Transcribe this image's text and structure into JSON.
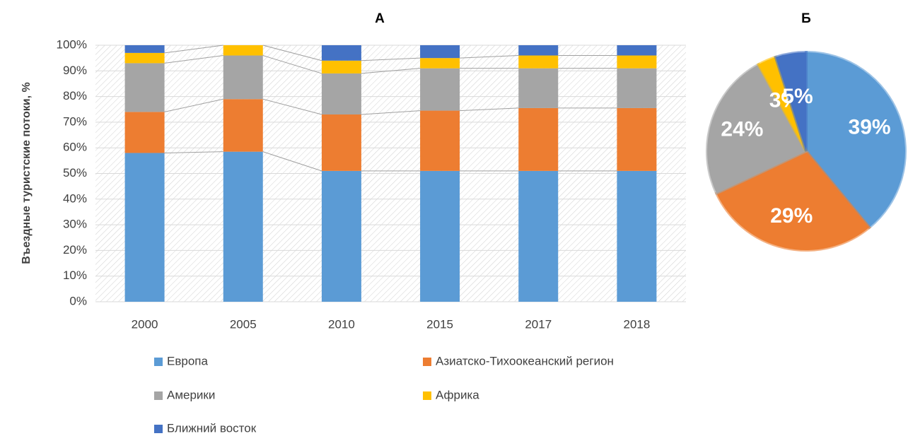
{
  "chart_data": [
    {
      "type": "bar",
      "stacked": true,
      "title": "А",
      "y_label": "Въездные туристские потоки, %",
      "categories": [
        "2000",
        "2005",
        "2010",
        "2015",
        "2017",
        "2018"
      ],
      "series": [
        {
          "name": "Европа",
          "color": "#5b9bd5",
          "values": [
            58,
            58.5,
            51,
            51,
            51,
            51
          ]
        },
        {
          "name": "Азиатско-Тихоокеанский регион",
          "color": "#ed7d31",
          "values": [
            16,
            20.5,
            22,
            23.5,
            24.5,
            24.5
          ]
        },
        {
          "name": "Америки",
          "color": "#a5a5a5",
          "values": [
            19,
            17,
            16,
            16.5,
            15.5,
            15.5
          ]
        },
        {
          "name": "Африка",
          "color": "#ffc000",
          "values": [
            4,
            4,
            5,
            4,
            5,
            5
          ]
        },
        {
          "name": "Ближний восток",
          "color": "#4472c4",
          "values": [
            3,
            0,
            6,
            5,
            4,
            4
          ]
        }
      ],
      "ylim": [
        0,
        100
      ],
      "yticks": [
        {
          "value": 0,
          "label": "0%"
        },
        {
          "value": 10,
          "label": "10%"
        },
        {
          "value": 20,
          "label": "20%"
        },
        {
          "value": 30,
          "label": "30%"
        },
        {
          "value": 40,
          "label": "40%"
        },
        {
          "value": 50,
          "label": "50%"
        },
        {
          "value": 60,
          "label": "60%"
        },
        {
          "value": 70,
          "label": "70%"
        },
        {
          "value": 80,
          "label": "80%"
        },
        {
          "value": 90,
          "label": "90%"
        },
        {
          "value": 100,
          "label": "100%"
        }
      ],
      "grid": true
    },
    {
      "type": "pie",
      "title": "Б",
      "values": [
        39,
        29,
        24,
        3,
        5
      ],
      "value_labels": [
        "39%",
        "29%",
        "24%",
        "3%",
        "5%"
      ],
      "colors": [
        "#5b9bd5",
        "#ed7d31",
        "#a5a5a5",
        "#ffc000",
        "#4472c4"
      ]
    }
  ]
}
